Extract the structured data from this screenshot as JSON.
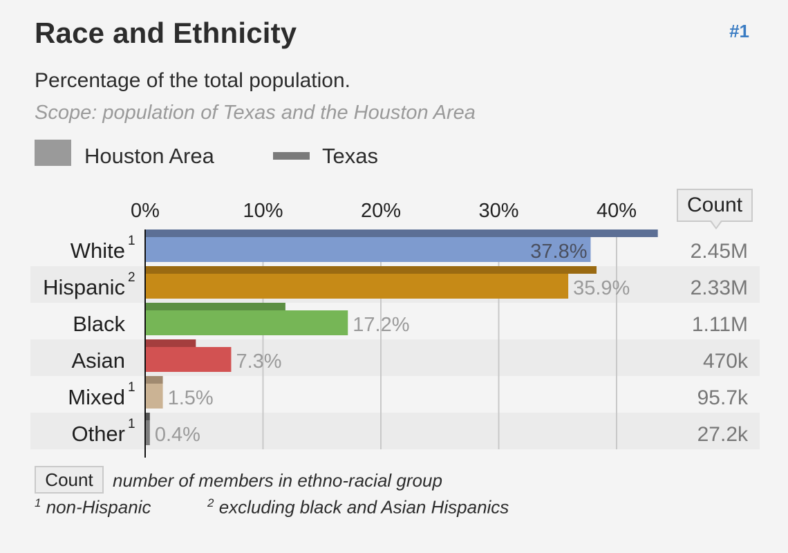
{
  "header": {
    "title": "Race and Ethnicity",
    "rank": "#1",
    "subtitle": "Percentage of the total population.",
    "scope": "Scope: population of Texas and the Houston Area"
  },
  "legend": {
    "area_label": "Houston Area",
    "texas_label": "Texas",
    "area_color": "#9a9a9a",
    "texas_color": "#7a7a7a"
  },
  "count_header": "Count",
  "chart_data": {
    "type": "bar",
    "orientation": "horizontal",
    "xlim": [
      0,
      50
    ],
    "xticks": [
      {
        "value": 0,
        "label": "0%"
      },
      {
        "value": 10,
        "label": "10%"
      },
      {
        "value": 20,
        "label": "20%"
      },
      {
        "value": 30,
        "label": "30%"
      },
      {
        "value": 40,
        "label": "40%"
      }
    ],
    "series": [
      {
        "name": "Houston Area",
        "role": "main"
      },
      {
        "name": "Texas",
        "role": "comparison"
      }
    ],
    "rows": [
      {
        "label": "White",
        "sup": "1",
        "houston": 37.8,
        "texas": 43.5,
        "value_label": "37.8%",
        "count": "2.45M",
        "color": "#7e9bcf",
        "texas_color": "#5c6f95"
      },
      {
        "label": "Hispanic",
        "sup": "2",
        "houston": 35.9,
        "texas": 38.3,
        "value_label": "35.9%",
        "count": "2.33M",
        "color": "#c68a17",
        "texas_color": "#9a6a12"
      },
      {
        "label": "Black",
        "sup": "",
        "houston": 17.2,
        "texas": 11.9,
        "value_label": "17.2%",
        "count": "1.11M",
        "color": "#76b656",
        "texas_color": "#5c8f43"
      },
      {
        "label": "Asian",
        "sup": "",
        "houston": 7.3,
        "texas": 4.3,
        "value_label": "7.3%",
        "count": "470k",
        "color": "#d25252",
        "texas_color": "#a43e3e"
      },
      {
        "label": "Mixed",
        "sup": "1",
        "houston": 1.5,
        "texas": 1.5,
        "value_label": "1.5%",
        "count": "95.7k",
        "color": "#cbb394",
        "texas_color": "#a08a70"
      },
      {
        "label": "Other",
        "sup": "1",
        "houston": 0.4,
        "texas": 0.4,
        "value_label": "0.4%",
        "count": "27.2k",
        "color": "#7e7e7e",
        "texas_color": "#555555"
      }
    ]
  },
  "footer": {
    "count_box": "Count",
    "count_desc": "number of members in ethno-racial group",
    "fn1_sup": "1",
    "fn1_text": "non-Hispanic",
    "fn2_sup": "2",
    "fn2_text": "excluding black and Asian Hispanics"
  }
}
